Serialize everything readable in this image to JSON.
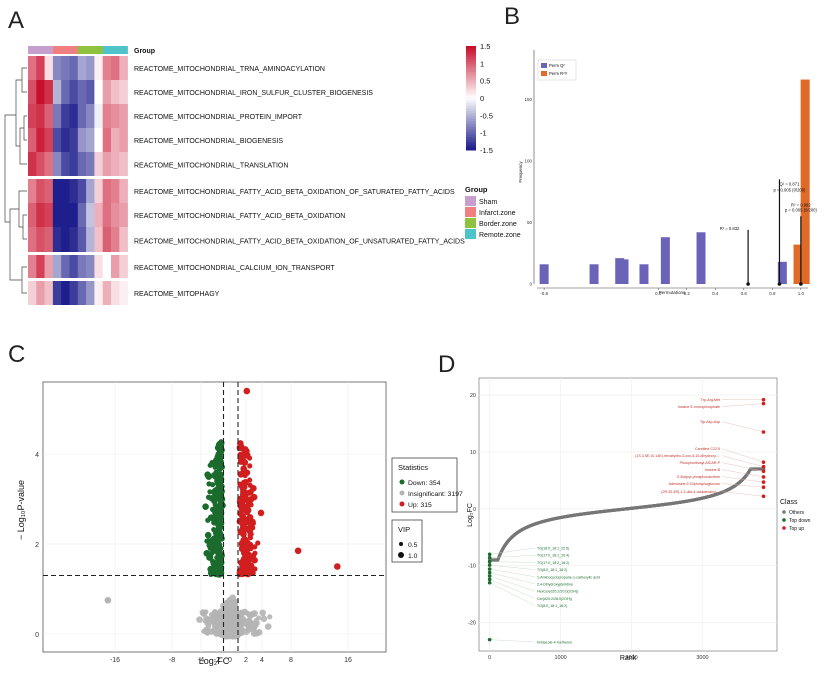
{
  "panel_labels": [
    "A",
    "B",
    "C",
    "D"
  ],
  "colors": {
    "sham": "#c79fce",
    "infarct": "#f08080",
    "border": "#8fc23f",
    "remote": "#4fc4c8",
    "heat_high": "#c8102e",
    "heat_mid": "#ffffff",
    "heat_low": "#1e1e8c",
    "perm_q2": "#6b63b8",
    "perm_r2": "#e06a28",
    "volcano_down": "#1a6b2c",
    "volcano_insig": "#b4b4b4",
    "volcano_up": "#d11e1e",
    "rank_other": "#777777"
  },
  "chart_data": [
    {
      "panel": "A",
      "type": "heatmap",
      "group_label": "Group",
      "legend_title": "Group",
      "legend_items": [
        "Sham",
        "Infarct.zone",
        "Border.zone",
        "Remote.zone"
      ],
      "scale_ticks": [
        "1.5",
        "1",
        "0.5",
        "0",
        "-0.5",
        "-1",
        "-1.5"
      ],
      "rows": [
        "REACTOME_MITOCHONDRIAL_TRNA_AMINOACYLATION",
        "REACTOME_MITOCHONDRIAL_IRON_SULFUR_CLUSTER_BIOGENESIS",
        "REACTOME_MITOCHONDRIAL_PROTEIN_IMPORT",
        "REACTOME_MITOCHONDRIAL_BIOGENESIS",
        "REACTOME_MITOCHONDRIAL_TRANSLATION",
        "REACTOME_MITOCHONDRIAL_FATTY_ACID_BETA_OXIDATION_OF_SATURATED_FATTY_ACIDS",
        "REACTOME_MITOCHONDRIAL_FATTY_ACID_BETA_OXIDATION",
        "REACTOME_MITOCHONDRIAL_FATTY_ACID_BETA_OXIDATION_OF_UNSATURATED_FATTY_ACIDS",
        "REACTOME_MITOCHONDRIAL_CALCIUM_ION_TRANSPORT",
        "REACTOME_MITOPHAGY"
      ],
      "column_groups": [
        "Sham",
        "Sham",
        "Sham",
        "Infarct.zone",
        "Infarct.zone",
        "Infarct.zone",
        "Border.zone",
        "Border.zone",
        "Border.zone",
        "Remote.zone",
        "Remote.zone",
        "Remote.zone"
      ],
      "values": [
        [
          0.9,
          1.2,
          0.2,
          -0.8,
          -0.9,
          -1.0,
          -0.6,
          -0.7,
          0.1,
          0.8,
          0.9,
          0.5
        ],
        [
          1.1,
          1.5,
          1.3,
          -0.5,
          -1.0,
          -1.2,
          -1.0,
          -1.1,
          0.0,
          0.6,
          0.4,
          0.3
        ],
        [
          1.2,
          1.3,
          1.0,
          -0.9,
          -1.3,
          -1.4,
          -1.0,
          -0.8,
          -0.1,
          0.8,
          0.7,
          0.6
        ],
        [
          1.0,
          1.4,
          1.2,
          -1.2,
          -1.4,
          -1.3,
          -0.7,
          -0.6,
          0.0,
          0.9,
          0.5,
          0.6
        ],
        [
          1.3,
          1.1,
          0.9,
          -0.8,
          -1.2,
          -1.3,
          -1.0,
          -0.9,
          0.3,
          0.6,
          0.5,
          0.4
        ],
        [
          0.8,
          1.1,
          1.0,
          -1.5,
          -1.5,
          -1.4,
          -1.2,
          -0.6,
          0.3,
          0.9,
          0.8,
          0.5
        ],
        [
          1.0,
          1.3,
          1.2,
          -1.5,
          -1.5,
          -1.5,
          -1.0,
          -0.4,
          0.5,
          0.9,
          0.7,
          0.6
        ],
        [
          0.9,
          1.1,
          1.0,
          -1.4,
          -1.5,
          -1.4,
          -1.1,
          -0.5,
          0.4,
          1.0,
          0.8,
          0.4
        ],
        [
          0.8,
          1.2,
          0.6,
          -0.6,
          -1.0,
          -1.2,
          -0.9,
          -0.8,
          0.2,
          0.0,
          0.6,
          0.3
        ],
        [
          0.3,
          0.6,
          0.4,
          -1.3,
          -1.5,
          -1.3,
          -1.0,
          -0.7,
          0.1,
          0.5,
          0.2,
          0.1
        ]
      ],
      "scale_range": [
        -1.5,
        1.5
      ]
    },
    {
      "panel": "B",
      "type": "bar",
      "xlabel": "Permutations",
      "ylabel": "Frequency",
      "legend": [
        "Perm Q²",
        "Perm R²Y"
      ],
      "x_ticks": [
        "-0.8",
        "0.0",
        "0.2",
        "0.4",
        "0.6",
        "0.8",
        "1.0"
      ],
      "x_tick_values": [
        -0.8,
        0.0,
        0.2,
        0.4,
        0.6,
        0.8,
        1.0
      ],
      "y_ticks": [
        "0",
        "50",
        "100",
        "150"
      ],
      "xlim": [
        -0.85,
        1.05
      ],
      "ylim": [
        0,
        190
      ],
      "series": [
        {
          "name": "Perm Q²",
          "x": [
            -0.8,
            -0.45,
            -0.27,
            -0.24,
            -0.1,
            0.05,
            0.3,
            0.87
          ],
          "values": [
            16,
            16,
            21,
            20,
            16,
            38,
            42,
            18
          ]
        },
        {
          "name": "Perm R²Y",
          "x": [
            0.98,
            1.03
          ],
          "values": [
            32,
            166
          ]
        }
      ],
      "annotations": [
        {
          "text": "R² = 0.832",
          "x": 0.5,
          "y": 44
        },
        {
          "text": "Q² = 0.871",
          "x": 0.92,
          "y": 80
        },
        {
          "text": "p = 0.005 (0/200)",
          "x": 0.92,
          "y": 75
        },
        {
          "text": "R² = 0.992",
          "x": 1.0,
          "y": 63
        },
        {
          "text": "p = 0.005 (0/200)",
          "x": 1.0,
          "y": 59
        }
      ],
      "markers": [
        {
          "x": 0.63,
          "y": 44
        },
        {
          "x": 0.85,
          "y": 85
        },
        {
          "x": 1.0,
          "y": 55
        }
      ]
    },
    {
      "panel": "C",
      "type": "scatter",
      "xlabel": "Log₂FC",
      "ylabel": "− Log₁₀P-value",
      "x_ticks": [
        "-16",
        "-8",
        "-4",
        "-2",
        "0",
        "2",
        "4",
        "8",
        "16"
      ],
      "x_tick_values": [
        -16,
        -8,
        -4,
        -2,
        0,
        2,
        4,
        8,
        16
      ],
      "y_ticks": [
        "0",
        "2",
        "4"
      ],
      "y_tick_values": [
        0,
        2,
        4
      ],
      "ylim": [
        -0.5,
        5.6
      ],
      "thresholds": {
        "fc": 1,
        "p": 1.3
      },
      "legend_statistics_title": "Statistics",
      "legend_statistics": [
        "Down: 354",
        "Insignificant: 3197",
        "Up: 315"
      ],
      "legend_vip_title": "VIP",
      "legend_vip": [
        "0.5",
        "1.0"
      ],
      "series": [
        {
          "name": "Down",
          "count": 354
        },
        {
          "name": "Insignificant",
          "count": 3197
        },
        {
          "name": "Up",
          "count": 315
        }
      ],
      "highlight_points": [
        {
          "x": 9.0,
          "y": 1.85
        },
        {
          "x": 14.5,
          "y": 1.5
        },
        {
          "x": -17,
          "y": 0.75
        },
        {
          "x": 2.1,
          "y": 5.4
        }
      ]
    },
    {
      "panel": "D",
      "type": "scatter",
      "xlabel": "Rank",
      "ylabel": "Log₂FC",
      "x_ticks": [
        "0",
        "1000",
        "2000",
        "3000"
      ],
      "x_tick_values": [
        0,
        1000,
        2000,
        3000
      ],
      "y_ticks": [
        "-20",
        "-10",
        "0",
        "10",
        "20"
      ],
      "y_tick_values": [
        -20,
        -10,
        0,
        10,
        20
      ],
      "xlim": [
        -150,
        4050
      ],
      "ylim": [
        -25,
        23
      ],
      "legend_title": "Class",
      "legend_items": [
        "Others",
        "Top down",
        "Top up"
      ],
      "top_up_labels": [
        "Trp-Arg-Met",
        "Inosine 5'-monophosphate",
        "Trp-Asp-Asp",
        "Carnitine C22:5",
        "(1S,3,5E,10,14E)-hexahydro-3-oxo-5,10-dihydroxy-...",
        "Phosphoribosyl-AICAR-P",
        "Inosine B",
        "3'-Butyryl-phosphocarnitine",
        "Adenosine 5'-Diphosphoglucose",
        "(2R,3S,4R)-1,3-diol-4-octadecanyl-..."
      ],
      "top_up_values": [
        19.2,
        18.5,
        13.5,
        8.2,
        7.4,
        6.6,
        5.6,
        4.7,
        3.8,
        2.2
      ],
      "top_down_labels": [
        "TG(18:0_18:1_22:5)",
        "TG(17:0_18:1_20:4)",
        "TG(17:0_18:2_18:2)",
        "TG(8:0_18:1_18:2)",
        "1-Aminocyclopropane-1-carboxylic acid",
        "2,4-Dihydroxypteridine",
        "HexCer(d20:2/20:0(2OH))",
        "Cer(d20:2/28:0(2OH))",
        "TG(8:0_18:1_18:2)",
        "Imidazole-4-methanol"
      ],
      "top_down_values": [
        -8.0,
        -8.6,
        -9.3,
        -9.9,
        -10.6,
        -11.2,
        -11.8,
        -12.4,
        -13.0,
        -23.0
      ]
    }
  ]
}
